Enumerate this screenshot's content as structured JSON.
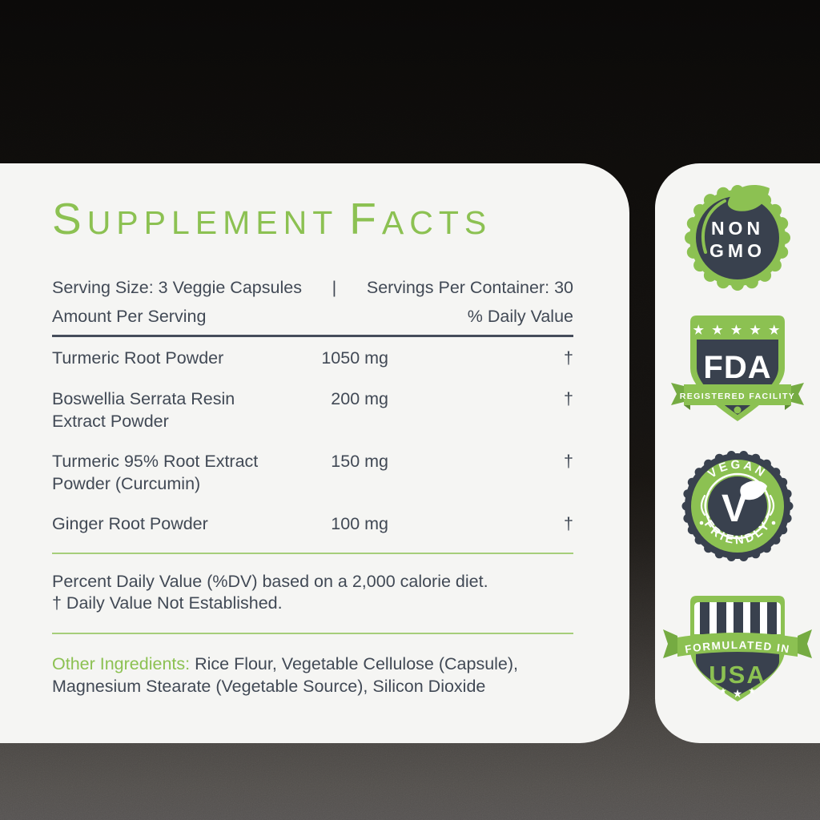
{
  "colors": {
    "green": "#8cc152",
    "green_dark": "#75ab42",
    "green_shadow": "#5e8c33",
    "navy": "#39414e",
    "text": "#414955",
    "rule_dark": "#454c5a",
    "rule_green": "#a6ce7a",
    "card_bg": "#f5f5f3"
  },
  "panel": {
    "title": {
      "lead1": "S",
      "rest1": "UPPLEMENT",
      "lead2": "F",
      "rest2": "ACTS"
    },
    "serving_left": "Serving Size: 3 Veggie Capsules",
    "separator": "|",
    "serving_right": "Servings Per Container: 30",
    "amount_label": "Amount Per Serving",
    "dv_label": "% Daily Value",
    "rows": [
      {
        "name": "Turmeric Root Powder",
        "amount": "1050 mg",
        "dv": "†"
      },
      {
        "name": "Boswellia Serrata Resin Extract Powder",
        "amount": "200 mg",
        "dv": "†"
      },
      {
        "name": "Turmeric 95% Root Extract Powder (Curcumin)",
        "amount": "150 mg",
        "dv": "†"
      },
      {
        "name": "Ginger Root Powder",
        "amount": "100 mg",
        "dv": "†"
      }
    ],
    "footnotes": [
      "Percent Daily Value (%DV) based on a 2,000 calorie diet.",
      "† Daily Value Not Established."
    ],
    "other_label": "Other Ingredients:",
    "other_text": " Rice Flour, Vegetable Cellulose (Capsule), Magnesium Stearate (Vegetable Source), Silicon Dioxide"
  },
  "badges": [
    {
      "id": "non-gmo",
      "line1": "NON",
      "line2": "GMO"
    },
    {
      "id": "fda-registered-facility",
      "stars": "★ ★ ★ ★ ★",
      "acronym": "FDA",
      "ribbon": "REGISTERED FACILITY"
    },
    {
      "id": "vegan-friendly",
      "top": "VEGAN",
      "bottom": "FRIENDLY",
      "monogram": "V"
    },
    {
      "id": "formulated-in-usa",
      "ribbon": "FORMULATED IN",
      "country": "USA",
      "stars": [
        "★",
        "★",
        "★"
      ]
    }
  ]
}
